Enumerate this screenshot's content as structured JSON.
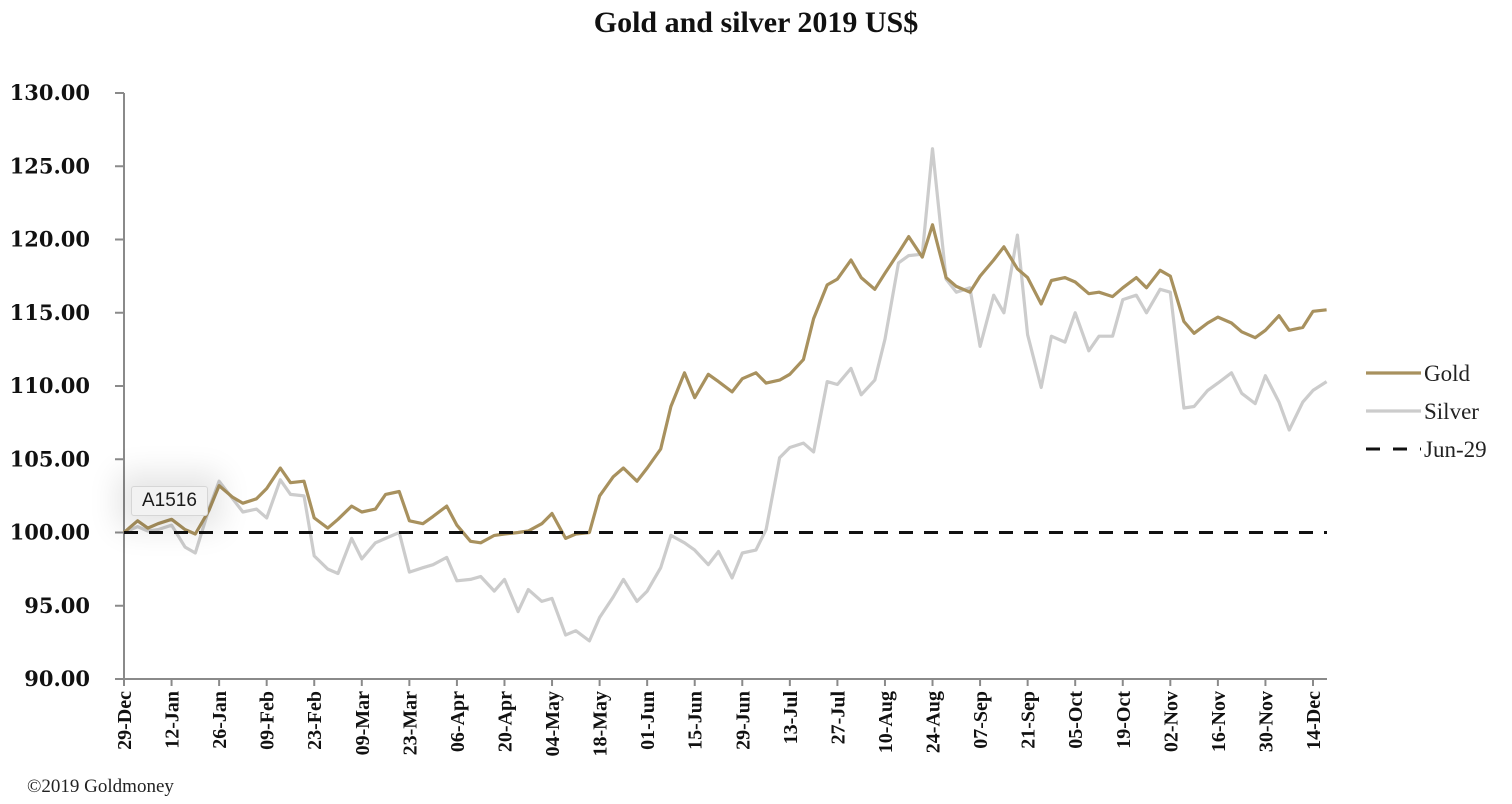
{
  "title": "Gold and silver 2019  US$",
  "copyright": "©2019 Goldmoney",
  "tooltip": "A1516",
  "colors": {
    "gold": "#a8915e",
    "silver": "#cccccc",
    "baseline": "#111111",
    "axis": "#8a8a8a"
  },
  "chart_data": {
    "type": "line",
    "title": "Gold and silver 2019  US$",
    "xlabel": "",
    "ylabel": "",
    "ylim": [
      90,
      130
    ],
    "yticks": [
      "130.00",
      "125.00",
      "120.00",
      "115.00",
      "110.00",
      "105.00",
      "100.00",
      "95.00",
      "90.00"
    ],
    "ytick_values": [
      130,
      125,
      120,
      115,
      110,
      105,
      100,
      95,
      90
    ],
    "xticks": [
      "29-Dec",
      "12-Jan",
      "26-Jan",
      "09-Feb",
      "23-Feb",
      "09-Mar",
      "23-Mar",
      "06-Apr",
      "20-Apr",
      "04-May",
      "18-May",
      "01-Jun",
      "15-Jun",
      "29-Jun",
      "13-Jul",
      "27-Jul",
      "10-Aug",
      "24-Aug",
      "07-Sep",
      "21-Sep",
      "05-Oct",
      "19-Oct",
      "02-Nov",
      "16-Nov",
      "30-Nov",
      "14-Dec"
    ],
    "x_unit": "days since 29-Dec",
    "xlim": [
      0,
      354
    ],
    "legend": {
      "position": "right",
      "entries": [
        "Gold",
        "Silver",
        "Jun-29"
      ]
    },
    "grid": false,
    "series": [
      {
        "name": "Gold",
        "x": [
          0,
          4,
          7,
          10,
          14,
          18,
          21,
          25,
          28,
          32,
          35,
          39,
          42,
          46,
          49,
          53,
          56,
          60,
          63,
          67,
          70,
          74,
          77,
          81,
          84,
          88,
          91,
          95,
          98,
          102,
          105,
          109,
          112,
          116,
          119,
          123,
          126,
          130,
          133,
          137,
          140,
          144,
          147,
          151,
          154,
          158,
          161,
          165,
          168,
          172,
          175,
          179,
          182,
          186,
          189,
          193,
          196,
          200,
          203,
          207,
          210,
          214,
          217,
          221,
          224,
          228,
          231,
          235,
          238,
          242,
          245,
          249,
          252,
          256,
          259,
          263,
          266,
          270,
          273,
          277,
          280,
          284,
          287,
          291,
          294,
          298,
          301,
          305,
          308,
          312,
          315,
          319,
          322,
          326,
          329,
          333,
          336,
          340,
          343,
          347,
          350,
          354
        ],
        "values": [
          100.0,
          100.8,
          100.3,
          100.6,
          100.9,
          100.2,
          99.9,
          101.5,
          103.2,
          102.4,
          102.0,
          102.3,
          103.0,
          104.4,
          103.4,
          103.5,
          101.0,
          100.3,
          100.9,
          101.8,
          101.4,
          101.6,
          102.6,
          102.8,
          100.8,
          100.6,
          101.1,
          101.8,
          100.5,
          99.4,
          99.3,
          99.8,
          99.9,
          100.0,
          100.1,
          100.6,
          101.3,
          99.6,
          99.9,
          100.0,
          102.5,
          103.8,
          104.4,
          103.5,
          104.4,
          105.7,
          108.6,
          110.9,
          109.2,
          110.8,
          110.3,
          109.6,
          110.5,
          110.9,
          110.2,
          110.4,
          110.8,
          111.8,
          114.6,
          116.9,
          117.3,
          118.6,
          117.4,
          116.6,
          117.7,
          119.1,
          120.2,
          118.8,
          121.0,
          117.4,
          116.8,
          116.4,
          117.5,
          118.6,
          119.5,
          118.0,
          117.4,
          115.6,
          117.2,
          117.4,
          117.1,
          116.3,
          116.4,
          116.1,
          116.7,
          117.4,
          116.7,
          117.9,
          117.5,
          114.4,
          113.6,
          114.3,
          114.7,
          114.3,
          113.7,
          113.3,
          113.8,
          114.8,
          113.8,
          114.0,
          115.1,
          115.2
        ]
      },
      {
        "name": "Silver",
        "x": [
          0,
          4,
          7,
          10,
          14,
          18,
          21,
          25,
          28,
          32,
          35,
          39,
          42,
          46,
          49,
          53,
          56,
          60,
          63,
          67,
          70,
          74,
          77,
          81,
          84,
          88,
          91,
          95,
          98,
          102,
          105,
          109,
          112,
          116,
          119,
          123,
          126,
          130,
          133,
          137,
          140,
          144,
          147,
          151,
          154,
          158,
          161,
          165,
          168,
          172,
          175,
          179,
          182,
          186,
          189,
          193,
          196,
          200,
          203,
          207,
          210,
          214,
          217,
          221,
          224,
          228,
          231,
          235,
          238,
          242,
          245,
          249,
          252,
          256,
          259,
          263,
          266,
          270,
          273,
          277,
          280,
          284,
          287,
          291,
          294,
          298,
          301,
          305,
          308,
          312,
          315,
          319,
          322,
          326,
          329,
          333,
          336,
          340,
          343,
          347,
          350,
          354
        ],
        "values": [
          100.0,
          100.4,
          100.1,
          100.2,
          100.5,
          99.0,
          98.6,
          101.6,
          103.5,
          102.3,
          101.4,
          101.6,
          101.0,
          103.6,
          102.6,
          102.5,
          98.4,
          97.5,
          97.2,
          99.6,
          98.2,
          99.3,
          99.6,
          100.0,
          97.3,
          97.6,
          97.8,
          98.3,
          96.7,
          96.8,
          97.0,
          96.0,
          96.8,
          94.6,
          96.1,
          95.3,
          95.5,
          93.0,
          93.3,
          92.6,
          94.2,
          95.6,
          96.8,
          95.3,
          96.0,
          97.6,
          99.8,
          99.3,
          98.8,
          97.8,
          98.7,
          96.9,
          98.6,
          98.8,
          100.2,
          105.1,
          105.8,
          106.1,
          105.5,
          110.3,
          110.1,
          111.2,
          109.4,
          110.4,
          113.2,
          118.4,
          118.9,
          119.0,
          126.2,
          117.3,
          116.4,
          116.7,
          112.7,
          116.2,
          115.0,
          120.3,
          113.5,
          109.9,
          113.4,
          113.0,
          115.0,
          112.4,
          113.4,
          113.4,
          115.9,
          116.2,
          115.0,
          116.6,
          116.4,
          108.5,
          108.6,
          109.7,
          110.2,
          110.9,
          109.5,
          108.8,
          110.7,
          108.9,
          107.0,
          108.9,
          109.7,
          110.3
        ]
      },
      {
        "name": "Jun-29",
        "x": [
          0,
          354
        ],
        "values": [
          100,
          100
        ]
      }
    ]
  }
}
